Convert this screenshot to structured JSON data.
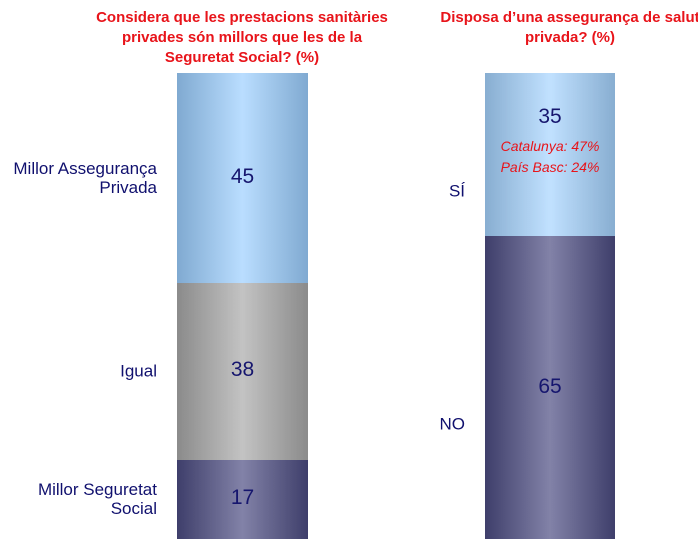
{
  "chart_data": [
    {
      "type": "stacked_bar",
      "title": "Considera que les prestacions sanitàries privades són millors que les de la Seguretat Social? (%)",
      "categories": [
        "Millor Assegurança Privada",
        "Igual",
        "Millor Seguretat Social"
      ],
      "values": [
        45,
        38,
        17
      ],
      "colors": [
        "#9ccfff",
        "#a9a9a9",
        "#4c4c82"
      ]
    },
    {
      "type": "stacked_bar",
      "title": "Disposa d’una assegurança de salut privada? (%)",
      "categories": [
        "SÍ",
        "NO"
      ],
      "values": [
        35,
        65
      ],
      "colors": [
        "#a6d4ff",
        "#4c4c82"
      ],
      "annotations": [
        "Catalunya: 47%",
        "País Basc: 24%"
      ]
    }
  ]
}
